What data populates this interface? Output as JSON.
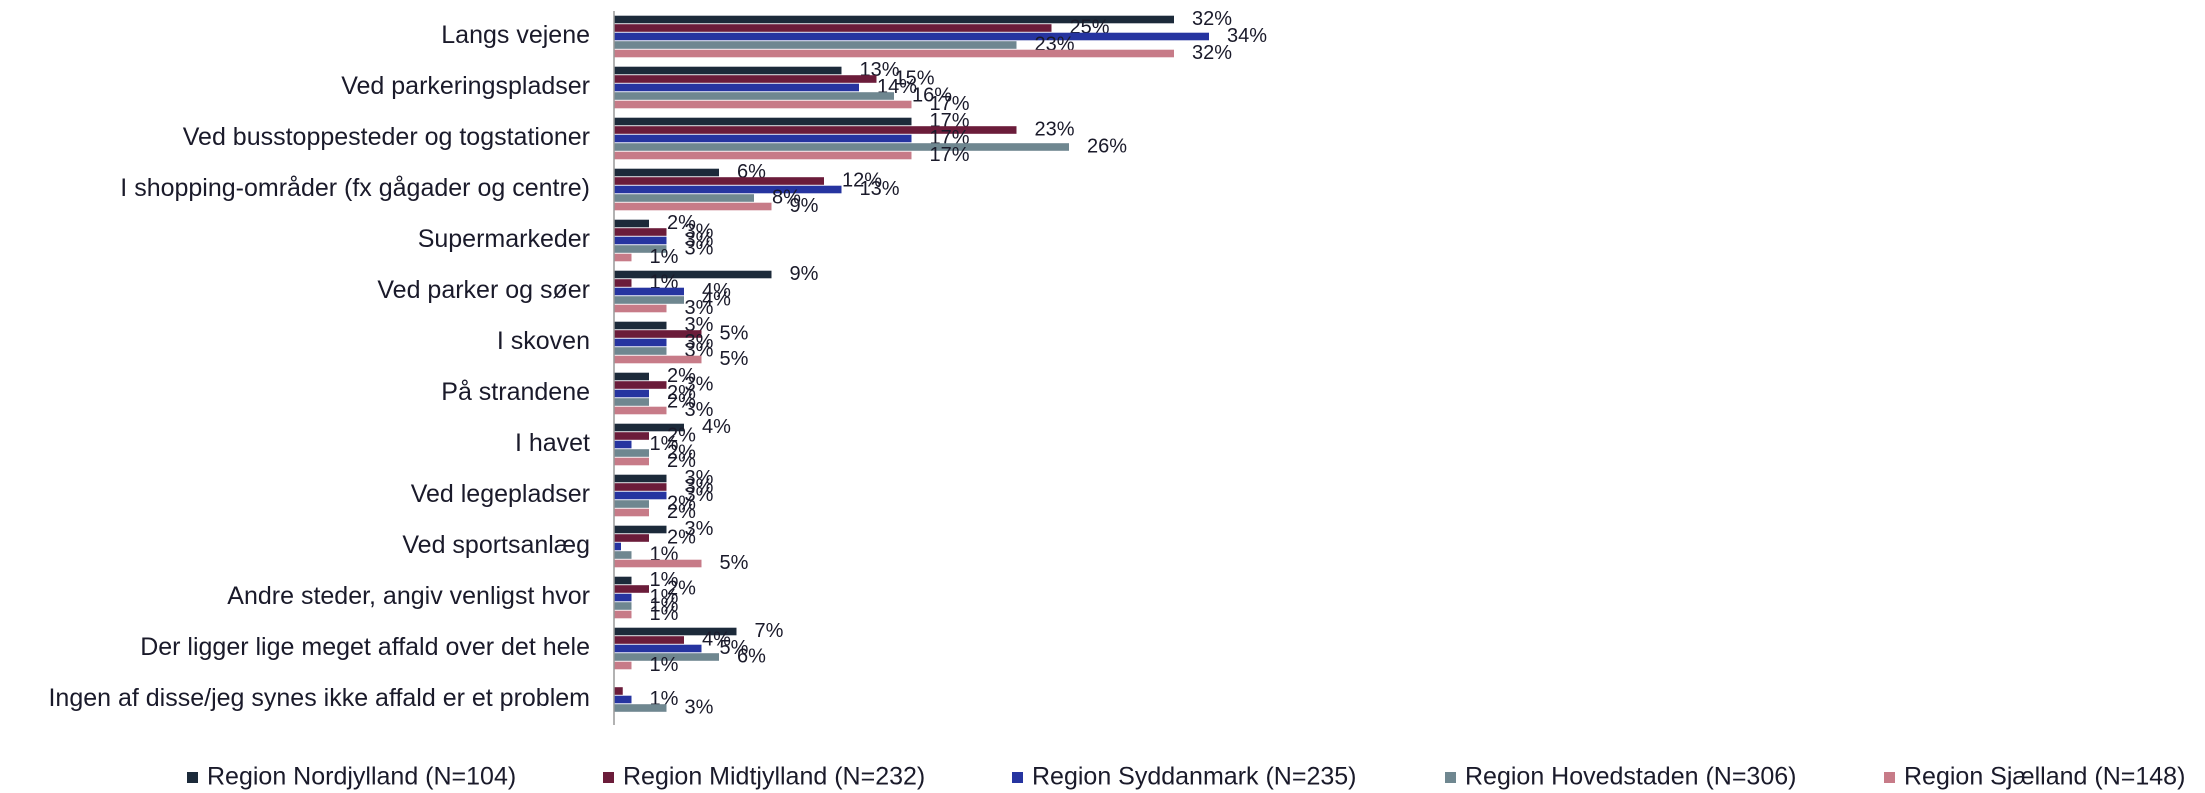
{
  "chart_data": {
    "type": "hbar",
    "categories": [
      "Langs vejene",
      "Ved parkeringspladser",
      "Ved busstoppesteder og togstationer",
      "I shopping-områder (fx gågader og centre)",
      "Supermarkeder",
      "Ved parker og søer",
      "I skoven",
      "På strandene",
      "I havet",
      "Ved legepladser",
      "Ved sportsanlæg",
      "Andre steder, angiv venligst hvor",
      "Der ligger lige meget affald over det hele",
      "Ingen af disse/jeg synes ikke affald er et problem"
    ],
    "series": [
      {
        "name": "Region Nordjylland (N=104)",
        "color": "#1c2a3a",
        "values": [
          32,
          13,
          17,
          6,
          2,
          9,
          3,
          2,
          4,
          3,
          3,
          1,
          7,
          0
        ],
        "value_labels": [
          "32%",
          "13%",
          "17%",
          "6%",
          "2%",
          "9%",
          "3%",
          "2%",
          "4%",
          "3%",
          "3%",
          "1%",
          "7%",
          null
        ]
      },
      {
        "name": "Region Midtjylland (N=232)",
        "color": "#6b1c3a",
        "values": [
          25,
          15,
          23,
          12,
          3,
          1,
          5,
          3,
          2,
          3,
          2,
          2,
          4,
          0.5
        ],
        "value_labels": [
          "25%",
          "15%",
          "23%",
          "12%",
          "3%",
          "1%",
          "5%",
          "3%",
          "2%",
          "3%",
          "2%",
          "2%",
          "4%",
          null
        ]
      },
      {
        "name": "Region Syddanmark (N=235)",
        "color": "#2634a0",
        "values": [
          34,
          14,
          17,
          13,
          3,
          4,
          3,
          2,
          1,
          3,
          0.4,
          1,
          5,
          1
        ],
        "value_labels": [
          "34%",
          "14%",
          "17%",
          "13%",
          "3%",
          "4%",
          "3%",
          "2%",
          "1%",
          "3%",
          null,
          "1%",
          "5%",
          "1%"
        ]
      },
      {
        "name": "Region Hovedstaden (N=306)",
        "color": "#6f8790",
        "values": [
          23,
          16,
          26,
          8,
          3,
          4,
          3,
          2,
          2,
          2,
          1,
          1,
          6,
          3
        ],
        "value_labels": [
          "23%",
          "16%",
          "26%",
          "8%",
          "3%",
          "4%",
          "3%",
          "2%",
          "2%",
          "2%",
          "1%",
          "1%",
          "6%",
          "3%"
        ]
      },
      {
        "name": "Region Sjælland (N=148)",
        "color": "#c77b88",
        "values": [
          32,
          17,
          17,
          9,
          1,
          3,
          5,
          3,
          2,
          2,
          5,
          1,
          1,
          0
        ],
        "value_labels": [
          "32%",
          "17%",
          "17%",
          "9%",
          "1%",
          "3%",
          "5%",
          "3%",
          "2%",
          "2%",
          "5%",
          "1%",
          "1%",
          null
        ]
      }
    ],
    "legend": "bottom"
  }
}
